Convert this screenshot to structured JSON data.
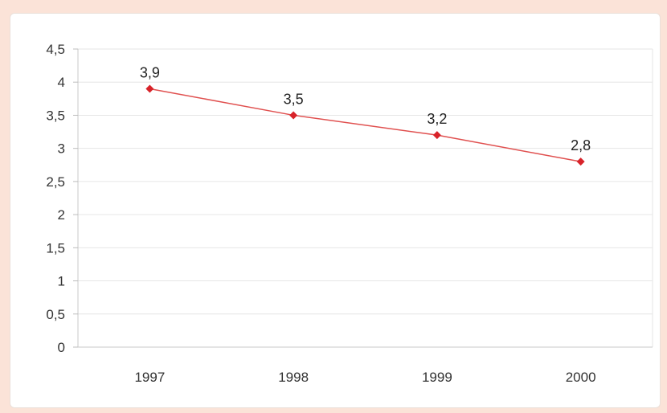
{
  "chart_data": {
    "type": "line",
    "categories": [
      "1997",
      "1998",
      "1999",
      "2000"
    ],
    "series": [
      {
        "values": [
          3.9,
          3.5,
          3.2,
          2.8
        ],
        "data_labels": [
          "3,9",
          "3,5",
          "3,2",
          "2,8"
        ]
      }
    ],
    "ylim": [
      0,
      4.5
    ],
    "yticks": [
      "0",
      "0,5",
      "1",
      "1,5",
      "2",
      "2,5",
      "3",
      "3,5",
      "4",
      "4,5"
    ],
    "grid": true,
    "line_color": "#e0504f",
    "marker_color": "#d8232a"
  },
  "colors": {
    "background": "#fbe3d8",
    "panel": "#ffffff",
    "grid": "#e6e6e6"
  }
}
